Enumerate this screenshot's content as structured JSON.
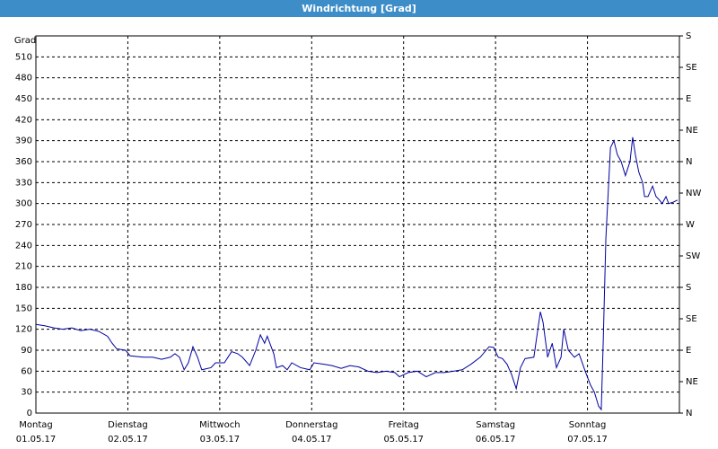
{
  "chart_data": {
    "type": "line",
    "title": "Windrichtung [Grad]",
    "ylabel": "Grad",
    "xlim": [
      0,
      168
    ],
    "xticks": [
      {
        "value": 0,
        "label": "Montag",
        "date": "01.05.17"
      },
      {
        "value": 24,
        "label": "Dienstag",
        "date": "02.05.17"
      },
      {
        "value": 48,
        "label": "Mittwoch",
        "date": "03.05.17"
      },
      {
        "value": 72,
        "label": "Donnerstag",
        "date": "04.05.17"
      },
      {
        "value": 96,
        "label": "Freitag",
        "date": "05.05.17"
      },
      {
        "value": 120,
        "label": "Samstag",
        "date": "06.05.17"
      },
      {
        "value": 144,
        "label": "Sonntag",
        "date": "07.05.17"
      }
    ],
    "ylim": [
      0,
      540
    ],
    "yticks": [
      0,
      30,
      60,
      90,
      120,
      150,
      180,
      210,
      240,
      270,
      300,
      330,
      360,
      390,
      420,
      450,
      480,
      510
    ],
    "y2lim": [
      0,
      540
    ],
    "y2ticks": [
      {
        "value": 0,
        "label": "N"
      },
      {
        "value": 45,
        "label": "NE"
      },
      {
        "value": 90,
        "label": "E"
      },
      {
        "value": 135,
        "label": "SE"
      },
      {
        "value": 180,
        "label": "S"
      },
      {
        "value": 225,
        "label": "SW"
      },
      {
        "value": 270,
        "label": "W"
      },
      {
        "value": 315,
        "label": "NW"
      },
      {
        "value": 360,
        "label": "N"
      },
      {
        "value": 405,
        "label": "NE"
      },
      {
        "value": 450,
        "label": "E"
      },
      {
        "value": 495,
        "label": "SE"
      },
      {
        "value": 540,
        "label": "S"
      }
    ],
    "grid": true,
    "series": [
      {
        "color": "#0000a0",
        "x": [
          0,
          2.3,
          4.7,
          7.0,
          9.4,
          11.7,
          14.1,
          16.4,
          18.7,
          19.9,
          21.1,
          23.4,
          24.6,
          28.1,
          30.5,
          32.8,
          35.1,
          36.3,
          37.5,
          38.7,
          39.8,
          41.0,
          42.2,
          43.3,
          45.7,
          46.9,
          49.2,
          51.1,
          52.7,
          53.9,
          55.8,
          57.4,
          58.6,
          59.7,
          60.4,
          62.1,
          62.8,
          64.4,
          65.6,
          66.8,
          69.1,
          71.5,
          72.6,
          75.0,
          77.3,
          79.7,
          82.0,
          84.3,
          86.7,
          89.0,
          91.4,
          93.7,
          94.9,
          97.2,
          99.6,
          101.9,
          104.3,
          106.6,
          109.0,
          111.3,
          113.6,
          116.0,
          118.3,
          119.5,
          120.7,
          121.8,
          123.0,
          124.2,
          125.4,
          126.5,
          127.7,
          130.0,
          131.7,
          132.4,
          133.6,
          134.8,
          135.9,
          137.1,
          137.8,
          139.0,
          140.6,
          141.8,
          143.4,
          144.8,
          145.8,
          146.9,
          147.6,
          148.1,
          148.8,
          150.0,
          150.9,
          151.8,
          152.8,
          153.9,
          155.1,
          155.8,
          156.5,
          157.4,
          158.4,
          158.9,
          159.8,
          161.0,
          161.9,
          162.8,
          163.5,
          164.5,
          165.2,
          166.4,
          167.5
        ],
        "values": [
          127,
          125,
          122,
          120,
          122,
          118,
          120,
          117,
          110,
          100,
          92,
          90,
          82,
          80,
          80,
          77,
          80,
          85,
          80,
          62,
          72,
          95,
          80,
          62,
          65,
          72,
          72,
          88,
          85,
          80,
          68,
          90,
          112,
          100,
          110,
          85,
          65,
          68,
          62,
          72,
          65,
          62,
          72,
          70,
          68,
          64,
          68,
          66,
          60,
          58,
          60,
          58,
          52,
          58,
          60,
          52,
          58,
          58,
          60,
          62,
          70,
          80,
          95,
          94,
          80,
          78,
          70,
          55,
          35,
          65,
          78,
          80,
          145,
          130,
          80,
          100,
          65,
          80,
          120,
          90,
          80,
          85,
          60,
          40,
          30,
          10,
          5,
          100,
          250,
          380,
          390,
          370,
          360,
          340,
          360,
          395,
          370,
          345,
          330,
          310,
          310,
          325,
          310,
          305,
          300,
          310,
          300,
          302,
          305
        ]
      }
    ]
  }
}
